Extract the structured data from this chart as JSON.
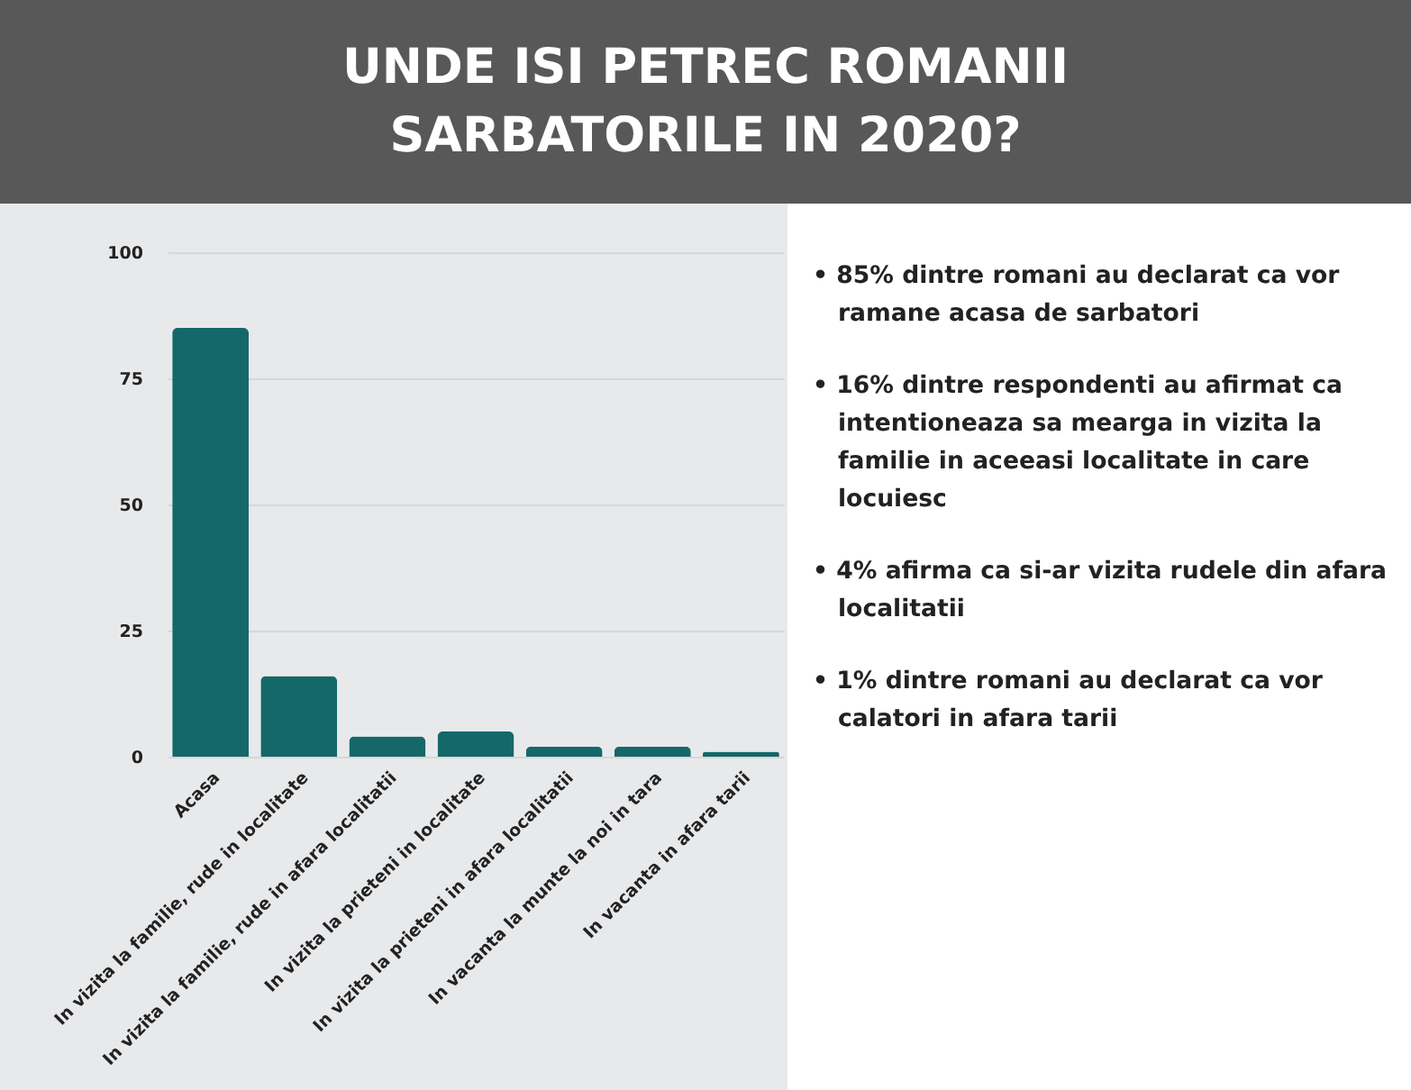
{
  "chart_data": {
    "type": "bar",
    "title": "UNDE ISI PETREC ROMANII SARBATORILE IN 2020?",
    "categories": [
      "Acasa",
      "In vizita la familie, rude in localitate",
      "In vizita la familie, rude in afara localitatii",
      "In vizita la prieteni in localitate",
      "In vizita la prieteni in afara localitatii",
      "In vacanta la munte la noi in tara",
      "In vacanta in afara tarii"
    ],
    "values": [
      85,
      16,
      4,
      5,
      2,
      2,
      1
    ],
    "color": "#156869",
    "ylim": [
      0,
      100
    ],
    "yticks": [
      0,
      25,
      50,
      75,
      100
    ],
    "grid": "y",
    "annotations": [
      "• 85% dintre romani au declarat ca vor ramane acasa de sarbatori",
      "• 16% dintre respondenti au afirmat ca intentioneaza sa mearga in vizita la familie in aceeasi localitate in care locuiesc",
      "• 4% afirma ca si-ar vizita rudele din afara localitatii",
      "• 1% dintre romani au declarat ca vor calatori in afara tarii"
    ]
  }
}
